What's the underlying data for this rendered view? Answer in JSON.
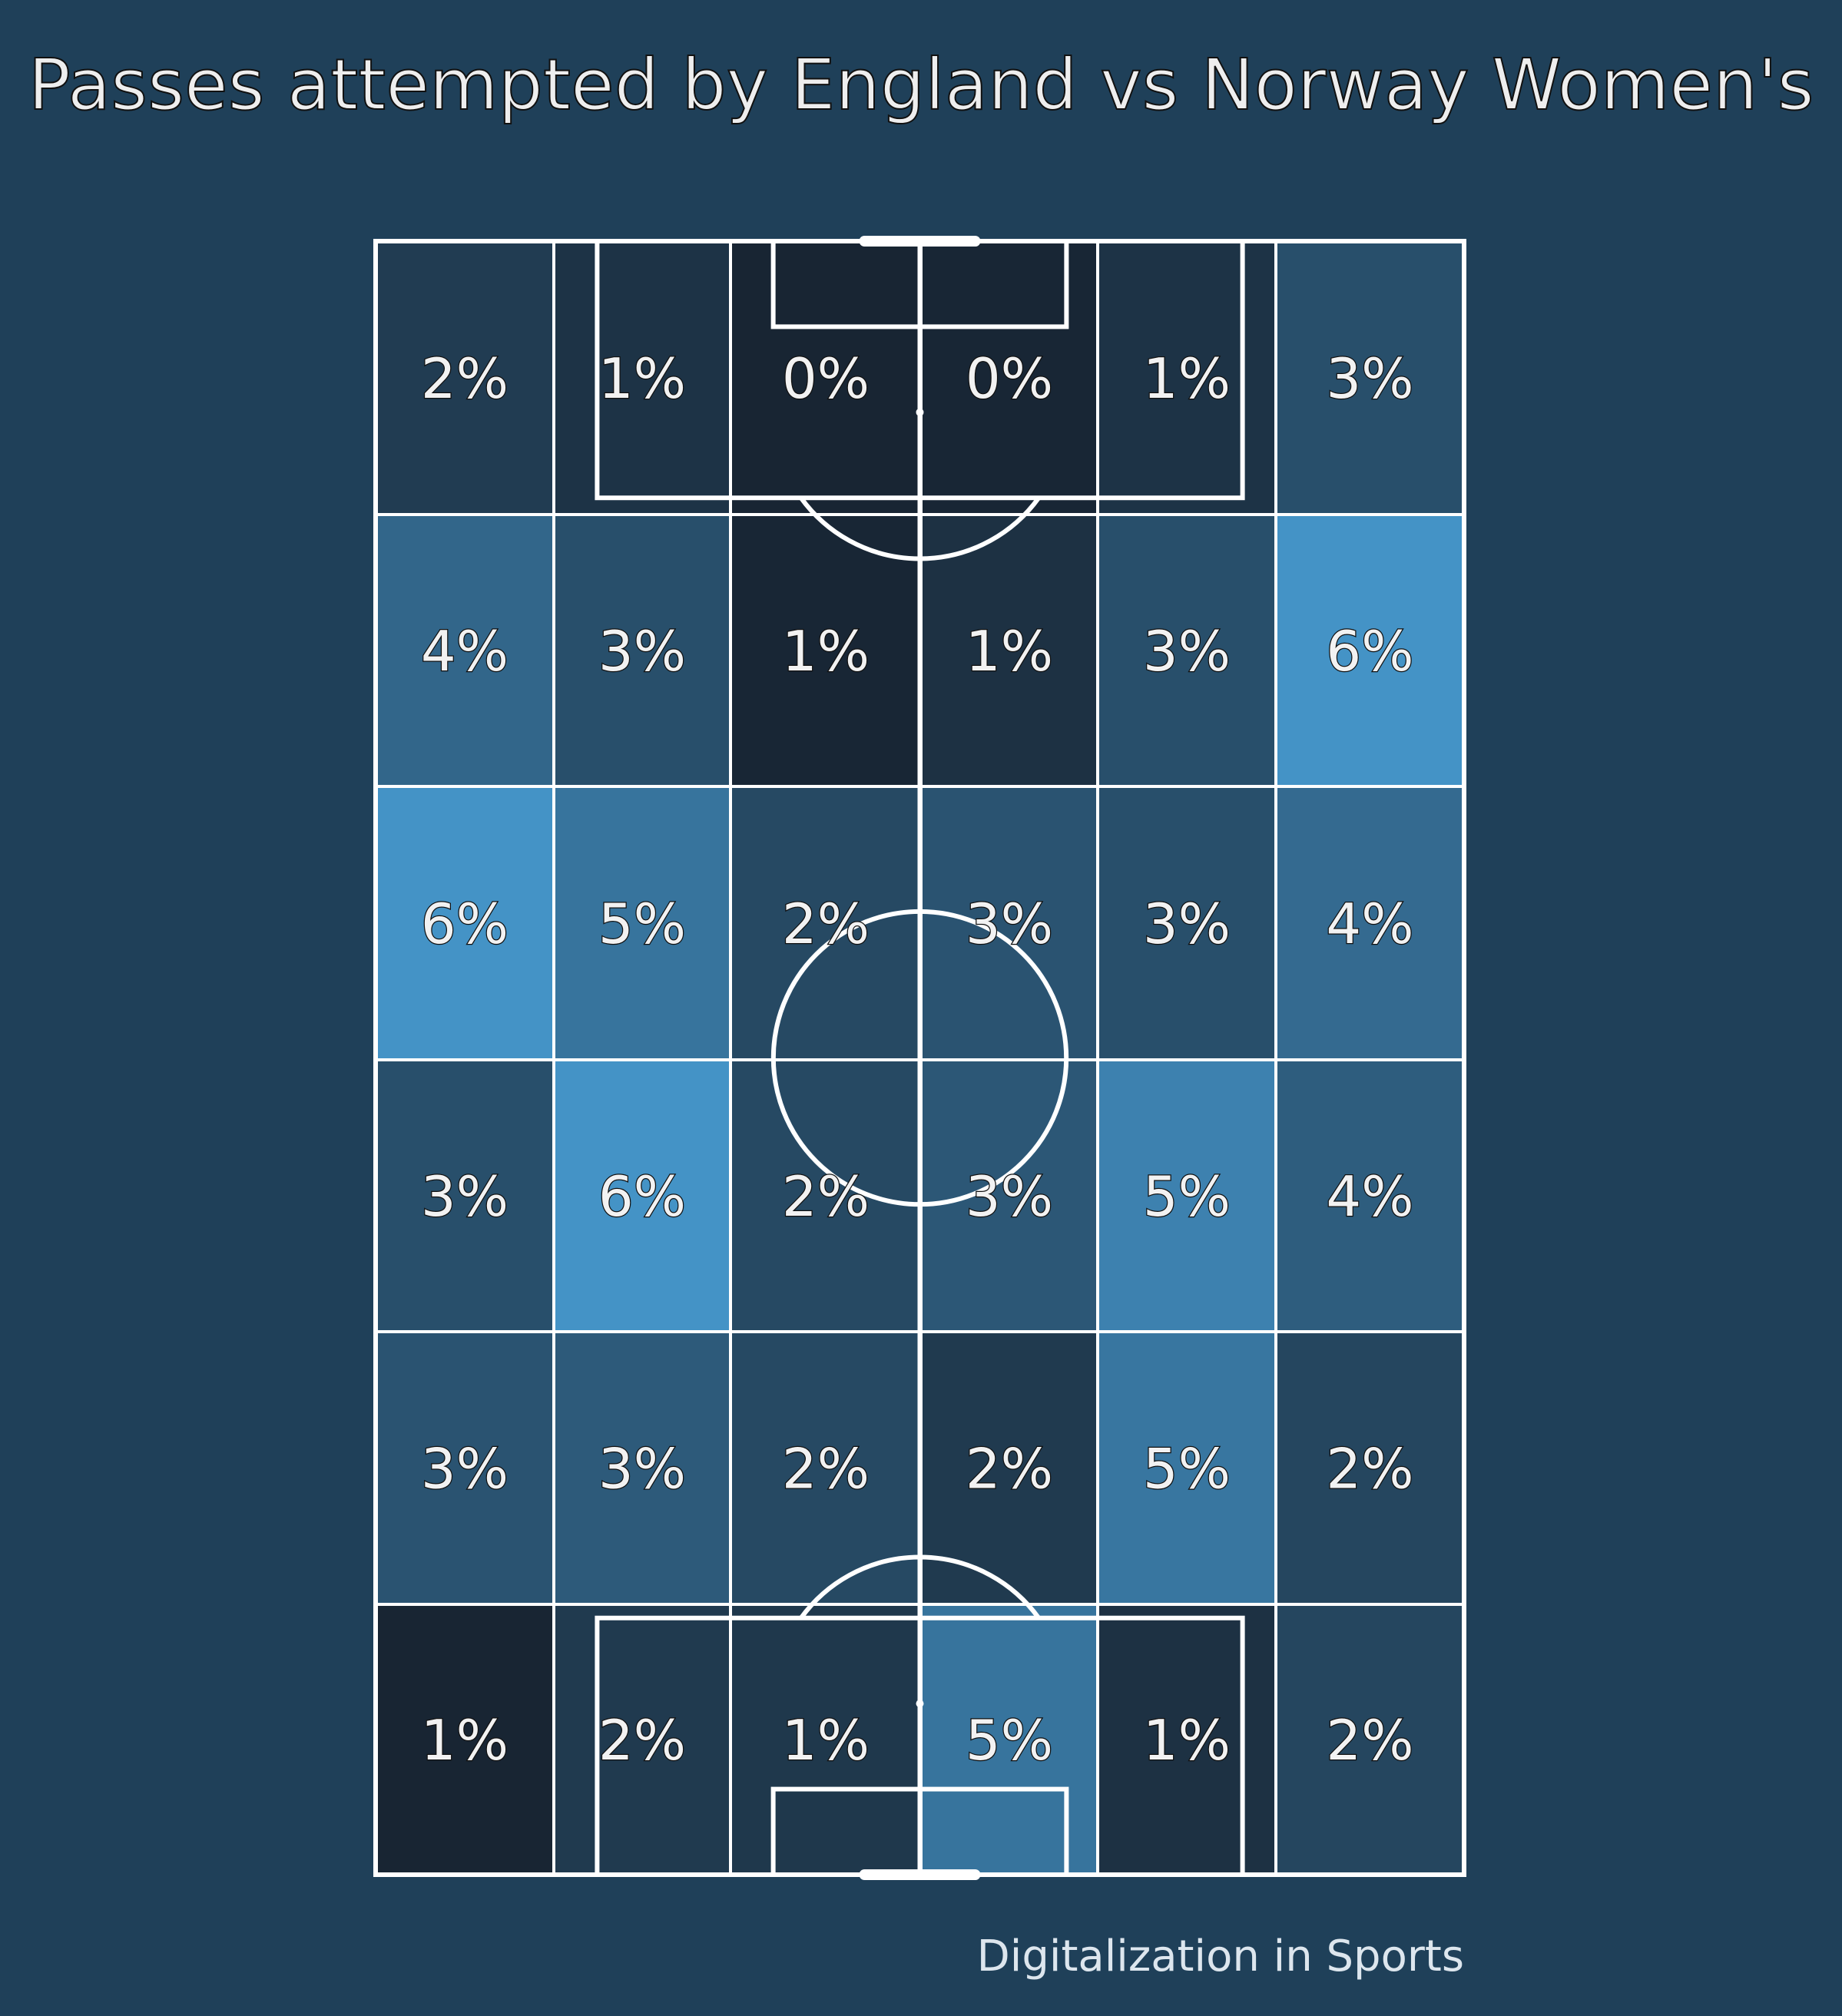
{
  "title": "Passes attempted by England vs Norway Women's",
  "credit": "Digitalization in Sports",
  "colors": {
    "background": "#1f4059",
    "cell_min": "#172330",
    "cell_max": "#4596cb",
    "lines": "#ffffff"
  },
  "chart_data": {
    "type": "heatmap",
    "rows": 6,
    "cols": 6,
    "unit": "%",
    "values": [
      [
        2,
        1,
        0,
        0,
        1,
        3
      ],
      [
        4,
        3,
        1,
        1,
        3,
        6
      ],
      [
        6,
        5,
        2,
        3,
        3,
        4
      ],
      [
        3,
        6,
        2,
        3,
        5,
        4
      ],
      [
        3,
        3,
        2,
        2,
        5,
        2
      ],
      [
        1,
        2,
        1,
        5,
        1,
        2
      ]
    ],
    "labels": [
      [
        "2%",
        "1%",
        "0%",
        "0%",
        "1%",
        "3%"
      ],
      [
        "4%",
        "3%",
        "1%",
        "1%",
        "3%",
        "6%"
      ],
      [
        "6%",
        "5%",
        "2%",
        "3%",
        "3%",
        "4%"
      ],
      [
        "3%",
        "6%",
        "2%",
        "3%",
        "5%",
        "4%"
      ],
      [
        "3%",
        "3%",
        "2%",
        "2%",
        "5%",
        "2%"
      ],
      [
        "1%",
        "2%",
        "1%",
        "5%",
        "1%",
        "2%"
      ]
    ],
    "shade": [
      [
        0.22,
        0.14,
        0.02,
        0.03,
        0.14,
        0.38
      ],
      [
        0.58,
        0.38,
        0.03,
        0.12,
        0.38,
        0.97
      ],
      [
        0.97,
        0.7,
        0.33,
        0.42,
        0.38,
        0.62
      ],
      [
        0.38,
        0.97,
        0.33,
        0.45,
        0.82,
        0.5
      ],
      [
        0.42,
        0.48,
        0.33,
        0.2,
        0.72,
        0.3
      ],
      [
        0.02,
        0.2,
        0.18,
        0.7,
        0.12,
        0.3
      ]
    ]
  }
}
